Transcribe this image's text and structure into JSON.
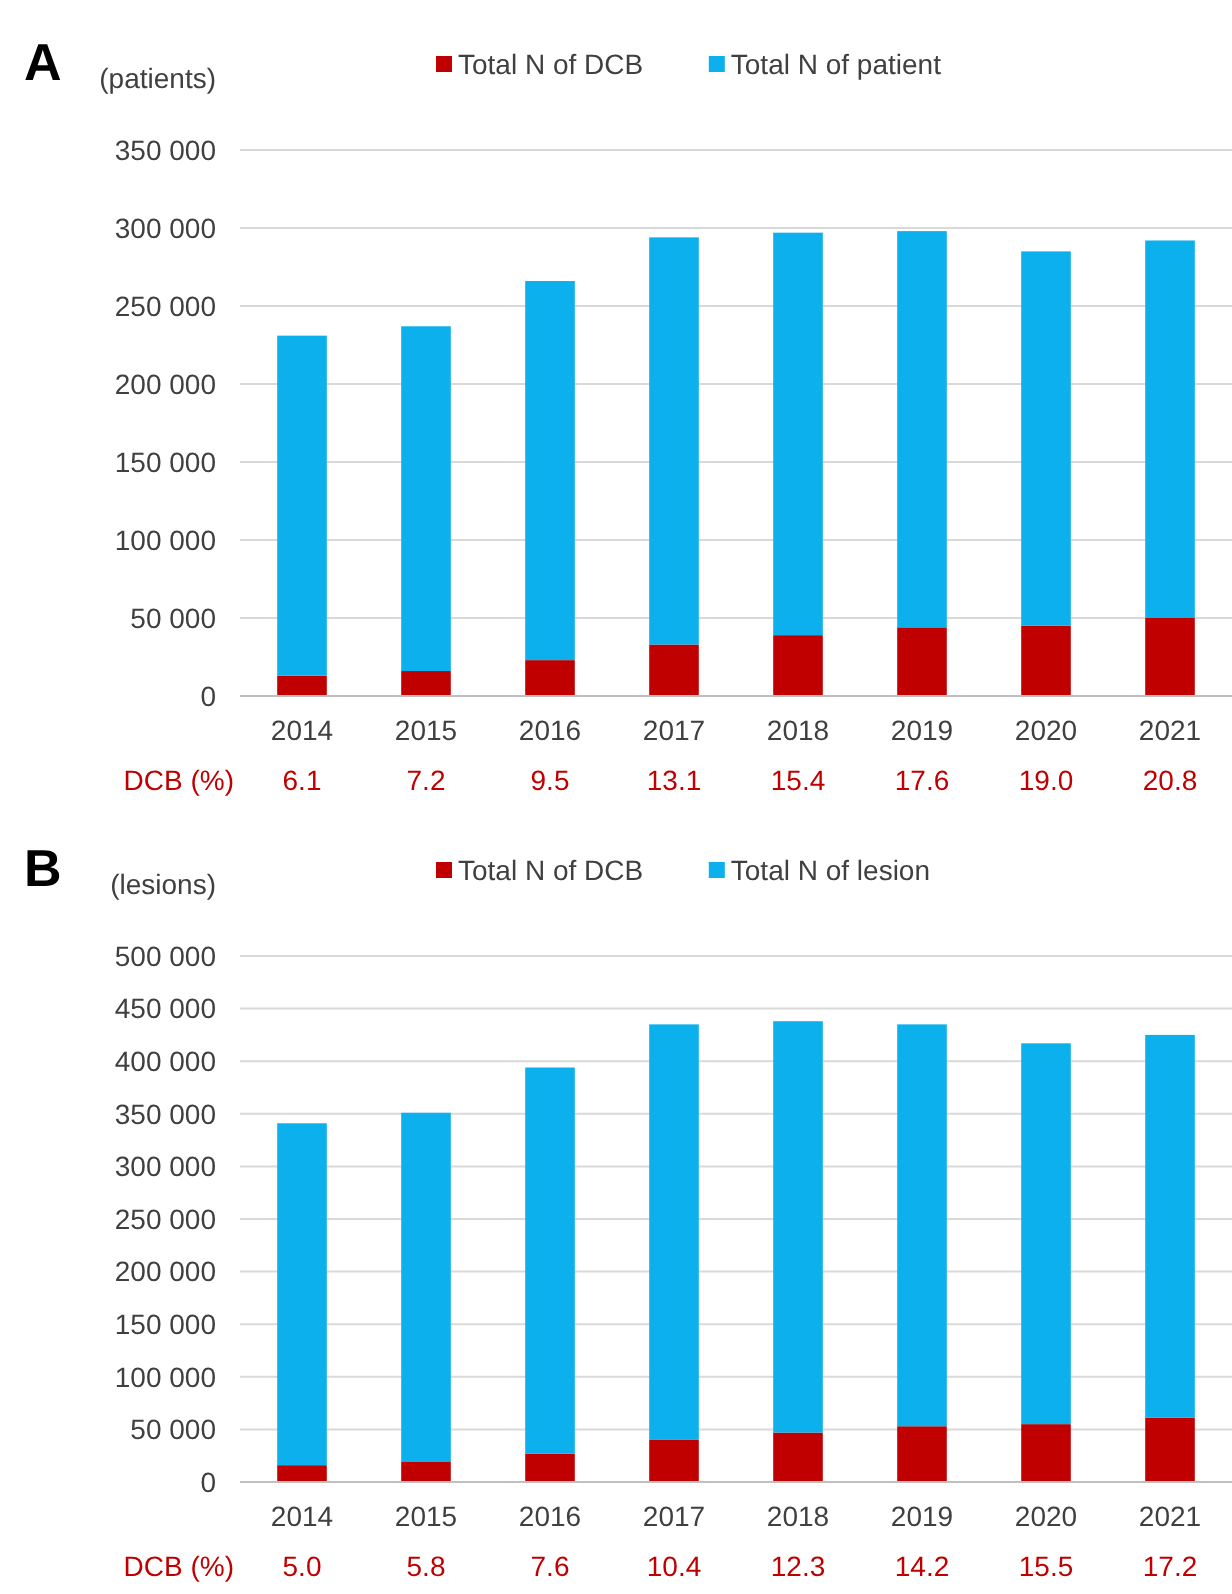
{
  "chart_data": [
    {
      "type": "bar",
      "stacked": true,
      "title": "A",
      "ylabel": "(patients)",
      "categories": [
        "2014",
        "2015",
        "2016",
        "2017",
        "2018",
        "2019",
        "2020",
        "2021"
      ],
      "series": [
        {
          "name": "Total N of DCB",
          "color": "#c00000",
          "values": [
            13000,
            16000,
            23000,
            33000,
            39000,
            44000,
            45000,
            50000
          ]
        },
        {
          "name": "Total N of patient",
          "color": "#0bb0ec",
          "values": [
            218000,
            221000,
            243000,
            261000,
            258000,
            254000,
            240000,
            242000
          ]
        }
      ],
      "ylim": [
        0,
        350000
      ],
      "yticks": [
        0,
        {
          "value": 50000,
          "label": "50 000"
        },
        {
          "value": 100000,
          "label": "100 000"
        },
        {
          "value": 150000,
          "label": "150 000"
        },
        {
          "value": 200000,
          "label": "200 000"
        },
        {
          "value": 250000,
          "label": "250 000"
        },
        {
          "value": 300000,
          "label": "300 000"
        },
        {
          "value": 350000,
          "label": "350 000"
        }
      ],
      "grid": "y",
      "legend": "top",
      "annotations": [
        "DCB (%)",
        "6.1",
        "7.2",
        "9.5",
        "13.1",
        "15.4",
        "17.6",
        "19.0",
        "20.8"
      ]
    },
    {
      "type": "bar",
      "stacked": true,
      "title": "B",
      "ylabel": "(lesions)",
      "categories": [
        "2014",
        "2015",
        "2016",
        "2017",
        "2018",
        "2019",
        "2020",
        "2021"
      ],
      "series": [
        {
          "name": "Total N of DCB",
          "color": "#c00000",
          "values": [
            16000,
            19000,
            27000,
            40000,
            47000,
            53000,
            55000,
            61000
          ]
        },
        {
          "name": "Total N of lesion",
          "color": "#0bb0ec",
          "values": [
            325000,
            332000,
            367000,
            395000,
            391000,
            382000,
            362000,
            364000
          ]
        }
      ],
      "ylim": [
        0,
        500000
      ],
      "yticks": [
        0,
        {
          "value": 50000,
          "label": "50 000"
        },
        {
          "value": 100000,
          "label": "100 000"
        },
        {
          "value": 150000,
          "label": "150 000"
        },
        {
          "value": 200000,
          "label": "200 000"
        },
        {
          "value": 250000,
          "label": "250 000"
        },
        {
          "value": 300000,
          "label": "300 000"
        },
        {
          "value": 350000,
          "label": "350 000"
        },
        {
          "value": 400000,
          "label": "400 000"
        },
        {
          "value": 450000,
          "label": "450 000"
        },
        {
          "value": 500000,
          "label": "500 000"
        }
      ],
      "grid": "y",
      "legend": "top",
      "annotations": [
        "DCB (%)",
        "5.0",
        "5.8",
        "7.6",
        "10.4",
        "12.3",
        "14.2",
        "15.5",
        "17.2"
      ]
    }
  ]
}
